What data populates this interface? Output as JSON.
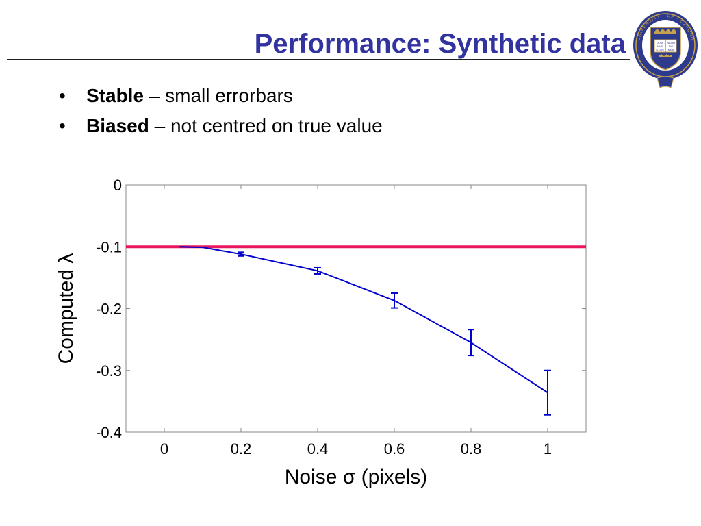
{
  "slide": {
    "title": "Performance: Synthetic data",
    "bullets": [
      {
        "bold": "Stable",
        "rest": " – small errorbars"
      },
      {
        "bold": "Biased",
        "rest": " – not centred on true value"
      }
    ],
    "bullet_symbol": "•",
    "crest_icon": "university-of-oxford-crest",
    "crest_text": "UNIVERSITY · OF · OXFORD",
    "crest_book_text": [
      "DOMI",
      "NVS",
      "ILLVM",
      "NATIO",
      "TIO",
      "MEA"
    ]
  },
  "colors": {
    "title": "#3333a0",
    "true_value_line": "#e8175d",
    "computed_series": "#0000cc",
    "crest_blue": "#2e3a8c",
    "crest_gold": "#c8a24a"
  },
  "chart_data": {
    "type": "line",
    "xlabel": "Noise σ (pixels)",
    "ylabel": "Computed λ",
    "xlim": [
      -0.1,
      1.1
    ],
    "ylim": [
      -0.4,
      0
    ],
    "xticks": [
      0,
      0.2,
      0.4,
      0.6,
      0.8,
      1
    ],
    "xtick_labels": [
      "0",
      "0.2",
      "0.4",
      "0.6",
      "0.8",
      "1"
    ],
    "yticks": [
      0,
      -0.1,
      -0.2,
      -0.3,
      -0.4
    ],
    "ytick_labels": [
      "0",
      "-0.1",
      "-0.2",
      "-0.3",
      "-0.4"
    ],
    "grid": false,
    "true_value": -0.1,
    "series": [
      {
        "x": [
          0.04,
          0.1,
          0.2,
          0.4,
          0.6,
          0.8,
          1.0
        ],
        "y": [
          -0.1,
          -0.101,
          -0.112,
          -0.139,
          -0.187,
          -0.255,
          -0.336
        ],
        "error": [
          0,
          0,
          0.003,
          0.005,
          0.012,
          0.021,
          0.036
        ]
      }
    ]
  }
}
